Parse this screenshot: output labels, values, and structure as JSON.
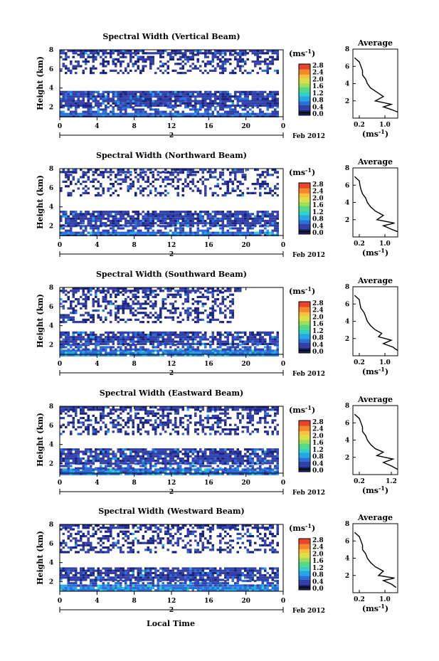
{
  "figure": {
    "x_axis_label": "Local Time",
    "date_label": "Feb 2012",
    "day_label": "2",
    "colorbar_unit": "(ms",
    "unit_superscript": "-1",
    "units_close": ")",
    "profile_title": "Average",
    "profile_unit": "(ms",
    "ylabel": "Height (km)"
  },
  "colorscale": [
    "#1a237e",
    "#3340a8",
    "#2c6fd8",
    "#25a6e8",
    "#34d1c8",
    "#55d98a",
    "#9be05a",
    "#d9e04a",
    "#f9c13e",
    "#f6882c",
    "#e8452a"
  ],
  "colorbar_ticks": [
    "0.0",
    "0.4",
    "0.8",
    "1.2",
    "1.6",
    "2.0",
    "2.4",
    "2.8"
  ],
  "chart_data": [
    {
      "type": "heatmap",
      "title": "Spectral Width (Vertical Beam)",
      "x_ticks": [
        "0",
        "4",
        "8",
        "12",
        "16",
        "20",
        "0"
      ],
      "y_ticks": [
        "2",
        "4",
        "6",
        "8"
      ],
      "xlim": [
        0,
        24
      ],
      "ylim": [
        1,
        8
      ],
      "zlim": [
        0,
        2.8
      ],
      "bands": [
        {
          "y": [
            1.0,
            1.4
          ],
          "x": [
            0,
            23.5
          ],
          "level": 0.45,
          "density": 0.99
        },
        {
          "y": [
            1.4,
            2.1
          ],
          "x": [
            0,
            23.5
          ],
          "level": 0.3,
          "density": 0.55
        },
        {
          "y": [
            2.1,
            3.7
          ],
          "x": [
            0,
            23.5
          ],
          "level": 0.22,
          "density": 0.93
        },
        {
          "y": [
            5.5,
            7.6
          ],
          "x": [
            0,
            23.5
          ],
          "level": 0.15,
          "density": 0.42
        },
        {
          "y": [
            7.6,
            8.0
          ],
          "x": [
            0,
            23.5
          ],
          "level": 0.15,
          "density": 0.85
        }
      ],
      "profile": {
        "xlim": [
          0.0,
          1.4
        ],
        "x_ticks": [
          "0.2",
          "1.0"
        ],
        "y_ticks": [
          "2",
          "4",
          "6",
          "8"
        ],
        "ylim": [
          0,
          8
        ],
        "height": [
          0.7,
          1.0,
          1.3,
          1.6,
          2.0,
          2.5,
          3.0,
          3.5,
          4.0,
          4.5,
          5.0,
          5.5,
          6.0,
          6.5,
          7.0
        ],
        "width": [
          1.4,
          1.2,
          0.95,
          1.2,
          0.7,
          0.95,
          0.75,
          0.55,
          0.45,
          0.4,
          0.3,
          0.3,
          0.25,
          0.2,
          0.05
        ]
      }
    },
    {
      "type": "heatmap",
      "title": "Spectral Width (Northward Beam)",
      "x_ticks": [
        "0",
        "4",
        "8",
        "12",
        "16",
        "20",
        "0"
      ],
      "y_ticks": [
        "2",
        "4",
        "6",
        "8"
      ],
      "xlim": [
        0,
        24
      ],
      "ylim": [
        1,
        8
      ],
      "zlim": [
        0,
        2.8
      ],
      "bands": [
        {
          "y": [
            1.0,
            1.4
          ],
          "x": [
            0,
            23.5
          ],
          "level": 0.5,
          "density": 0.97
        },
        {
          "y": [
            1.4,
            2.1
          ],
          "x": [
            0,
            23.5
          ],
          "level": 0.3,
          "density": 0.5
        },
        {
          "y": [
            2.1,
            3.6
          ],
          "x": [
            0,
            23.5
          ],
          "level": 0.22,
          "density": 0.85
        },
        {
          "y": [
            5.2,
            7.7
          ],
          "x": [
            0,
            23.5
          ],
          "level": 0.15,
          "density": 0.35
        },
        {
          "y": [
            7.7,
            8.0
          ],
          "x": [
            0,
            23.5
          ],
          "level": 0.15,
          "density": 0.6
        }
      ],
      "profile": {
        "xlim": [
          0.0,
          1.4
        ],
        "x_ticks": [
          "0.2",
          "1.0"
        ],
        "y_ticks": [
          "2",
          "4",
          "6",
          "8"
        ],
        "ylim": [
          0,
          8
        ],
        "height": [
          0.6,
          0.9,
          1.3,
          1.6,
          2.0,
          2.5,
          3.0,
          3.5,
          4.0,
          4.5,
          5.0,
          5.5,
          6.0,
          6.5,
          7.0
        ],
        "width": [
          1.4,
          1.2,
          0.95,
          1.3,
          0.75,
          0.95,
          0.7,
          0.55,
          0.45,
          0.4,
          0.3,
          0.25,
          0.22,
          0.2,
          0.05
        ]
      }
    },
    {
      "type": "heatmap",
      "title": "Spectral Width (Southward Beam)",
      "x_ticks": [
        "0",
        "4",
        "8",
        "12",
        "16",
        "20",
        "0"
      ],
      "y_ticks": [
        "2",
        "4",
        "6",
        "8"
      ],
      "xlim": [
        0,
        24
      ],
      "ylim": [
        1,
        8
      ],
      "zlim": [
        0,
        2.8
      ],
      "bands": [
        {
          "y": [
            1.0,
            1.5
          ],
          "x": [
            0,
            23.5
          ],
          "level": 0.55,
          "density": 0.97
        },
        {
          "y": [
            1.5,
            2.1
          ],
          "x": [
            0,
            23.5
          ],
          "level": 0.35,
          "density": 0.55
        },
        {
          "y": [
            2.1,
            3.4
          ],
          "x": [
            0,
            23.5
          ],
          "level": 0.22,
          "density": 0.8
        },
        {
          "y": [
            4.5,
            7.6
          ],
          "x": [
            0,
            18.5
          ],
          "level": 0.15,
          "density": 0.38
        },
        {
          "y": [
            7.6,
            8.0
          ],
          "x": [
            0,
            19.5
          ],
          "level": 0.15,
          "density": 0.75
        }
      ],
      "profile": {
        "xlim": [
          0.0,
          1.4
        ],
        "x_ticks": [
          "0.2",
          "1.0"
        ],
        "y_ticks": [
          "2",
          "4",
          "6",
          "8"
        ],
        "ylim": [
          0,
          8
        ],
        "height": [
          0.6,
          1.0,
          1.4,
          1.8,
          2.2,
          2.6,
          3.0,
          3.5,
          4.0,
          4.5,
          5.0,
          5.5,
          6.0,
          6.5,
          7.0
        ],
        "width": [
          1.4,
          1.25,
          0.95,
          1.2,
          0.8,
          0.9,
          0.7,
          0.55,
          0.45,
          0.4,
          0.35,
          0.25,
          0.22,
          0.2,
          0.05
        ]
      }
    },
    {
      "type": "heatmap",
      "title": "Spectral Width (Eastward Beam)",
      "x_ticks": [
        "0",
        "4",
        "8",
        "12",
        "16",
        "20",
        "0"
      ],
      "y_ticks": [
        "2",
        "4",
        "6",
        "8"
      ],
      "xlim": [
        0,
        24
      ],
      "ylim": [
        1,
        8
      ],
      "zlim": [
        0,
        2.8
      ],
      "bands": [
        {
          "y": [
            1.0,
            1.5
          ],
          "x": [
            0,
            23.5
          ],
          "level": 0.5,
          "density": 0.95
        },
        {
          "y": [
            1.5,
            2.1
          ],
          "x": [
            0,
            23.5
          ],
          "level": 0.3,
          "density": 0.5
        },
        {
          "y": [
            2.1,
            3.6
          ],
          "x": [
            0,
            23.5
          ],
          "level": 0.22,
          "density": 0.85
        },
        {
          "y": [
            5.0,
            7.6
          ],
          "x": [
            0,
            23.5
          ],
          "level": 0.15,
          "density": 0.4
        },
        {
          "y": [
            7.6,
            8.0
          ],
          "x": [
            0,
            23.5
          ],
          "level": 0.15,
          "density": 0.8
        }
      ],
      "profile": {
        "xlim": [
          0.0,
          1.4
        ],
        "x_ticks": [
          "0.2",
          "1.2"
        ],
        "y_ticks": [
          "2",
          "4",
          "6",
          "8"
        ],
        "ylim": [
          0,
          8
        ],
        "height": [
          0.6,
          1.0,
          1.4,
          1.8,
          2.2,
          2.6,
          3.0,
          3.5,
          4.0,
          4.5,
          5.0,
          5.5,
          6.0,
          6.5,
          7.0
        ],
        "width": [
          1.4,
          1.2,
          0.95,
          1.25,
          0.75,
          0.95,
          0.7,
          0.55,
          0.45,
          0.4,
          0.3,
          0.3,
          0.25,
          0.2,
          0.05
        ]
      }
    },
    {
      "type": "heatmap",
      "title": "Spectral Width (Westward Beam)",
      "x_ticks": [
        "0",
        "4",
        "8",
        "12",
        "16",
        "20",
        "0"
      ],
      "y_ticks": [
        "2",
        "4",
        "6",
        "8"
      ],
      "xlim": [
        0,
        24
      ],
      "ylim": [
        1,
        8
      ],
      "zlim": [
        0,
        2.8
      ],
      "bands": [
        {
          "y": [
            1.0,
            1.7
          ],
          "x": [
            0,
            23.5
          ],
          "level": 0.55,
          "density": 0.95
        },
        {
          "y": [
            1.7,
            2.2
          ],
          "x": [
            0,
            23.5
          ],
          "level": 0.3,
          "density": 0.5
        },
        {
          "y": [
            2.2,
            3.5
          ],
          "x": [
            0,
            23.5
          ],
          "level": 0.22,
          "density": 0.82
        },
        {
          "y": [
            5.0,
            7.6
          ],
          "x": [
            0,
            23.5
          ],
          "level": 0.15,
          "density": 0.35
        },
        {
          "y": [
            7.6,
            8.0
          ],
          "x": [
            0,
            23.5
          ],
          "level": 0.15,
          "density": 0.7
        }
      ],
      "profile": {
        "xlim": [
          0.0,
          1.4
        ],
        "x_ticks": [
          "0.2",
          "1.0"
        ],
        "y_ticks": [
          "2",
          "4",
          "6",
          "8"
        ],
        "ylim": [
          0,
          8
        ],
        "height": [
          0.6,
          1.0,
          1.4,
          1.7,
          2.0,
          2.5,
          3.0,
          3.5,
          4.0,
          4.5,
          5.0,
          5.5,
          6.0,
          6.5,
          7.0
        ],
        "width": [
          1.35,
          1.2,
          0.95,
          1.3,
          0.8,
          0.95,
          0.7,
          0.55,
          0.45,
          0.4,
          0.3,
          0.3,
          0.25,
          0.2,
          0.05
        ]
      }
    }
  ]
}
